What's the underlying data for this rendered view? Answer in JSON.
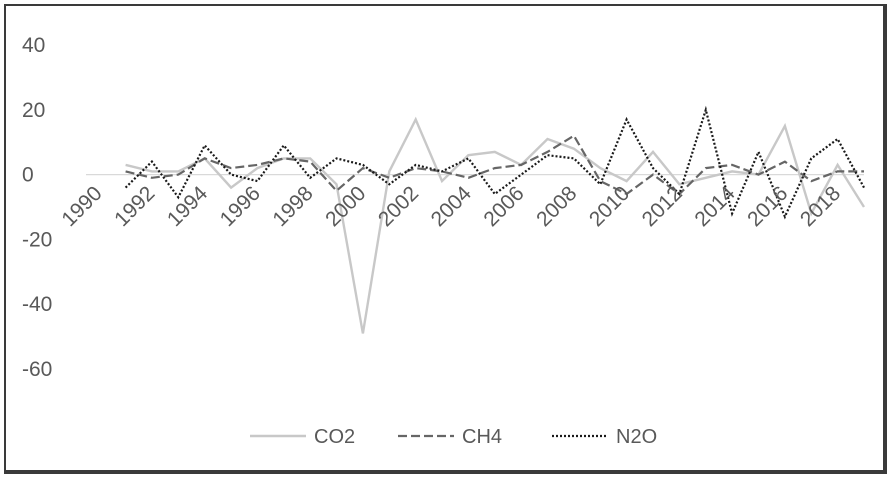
{
  "chart_data": {
    "type": "line",
    "title": "",
    "xlabel": "",
    "ylabel": "",
    "ylim": [
      -60,
      40
    ],
    "yticks": [
      40,
      20,
      0,
      -20,
      -40,
      -60
    ],
    "x": [
      1990,
      1991,
      1992,
      1993,
      1994,
      1995,
      1996,
      1997,
      1998,
      1999,
      2000,
      2001,
      2002,
      2003,
      2004,
      2005,
      2006,
      2007,
      2008,
      2009,
      2010,
      2011,
      2012,
      2013,
      2014,
      2015,
      2016,
      2017,
      2018,
      2019
    ],
    "xticks": [
      "1990",
      "1992",
      "1994",
      "1996",
      "1998",
      "2000",
      "2002",
      "2004",
      "2006",
      "2008",
      "2010",
      "2012",
      "2014",
      "2016",
      "2018"
    ],
    "grid": false,
    "legend_position": "bottom",
    "series": [
      {
        "name": "CO2",
        "color": "#c8c8c8",
        "style": "solid",
        "values": [
          null,
          3,
          1,
          1,
          5,
          -4,
          2,
          5,
          5,
          -3,
          -49,
          1,
          17,
          -2,
          6,
          7,
          3,
          11,
          8,
          2,
          -2,
          7,
          -3,
          -1,
          1,
          0,
          15,
          -12,
          3,
          -10
        ]
      },
      {
        "name": "CH4",
        "color": "#666666",
        "style": "dashed",
        "values": [
          null,
          1,
          -1,
          0,
          5,
          2,
          3,
          5,
          4,
          -5,
          2,
          -1,
          2,
          1,
          -1,
          2,
          3,
          7,
          12,
          -2,
          -6,
          0,
          -6,
          2,
          3,
          0,
          4,
          -2,
          1,
          1
        ]
      },
      {
        "name": "N2O",
        "color": "#1a1a1a",
        "style": "dotted",
        "values": [
          null,
          -4,
          4,
          -7,
          9,
          0,
          -2,
          9,
          -1,
          5,
          3,
          -3,
          3,
          1,
          5,
          -6,
          0,
          6,
          5,
          -3,
          17,
          2,
          -6,
          20,
          -12,
          7,
          -13,
          5,
          11,
          -4
        ]
      }
    ]
  }
}
